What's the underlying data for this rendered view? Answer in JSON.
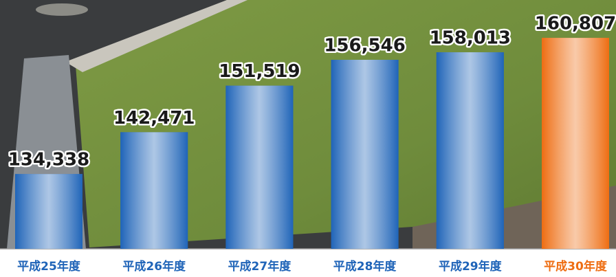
{
  "chart_data": {
    "type": "bar",
    "categories": [
      "平成25年度",
      "平成26年度",
      "平成27年度",
      "平成28年度",
      "平成29年度",
      "平成30年度"
    ],
    "values": [
      134338,
      142471,
      151519,
      156546,
      158013,
      160807
    ],
    "value_labels": [
      "134,338",
      "142,471",
      "151,519",
      "156,546",
      "158,013",
      "160,807"
    ],
    "colors": [
      "#1f64b8",
      "#1f64b8",
      "#1f64b8",
      "#1f64b8",
      "#1f64b8",
      "#ee6d12"
    ],
    "ylim": [
      119800,
      165500
    ]
  }
}
